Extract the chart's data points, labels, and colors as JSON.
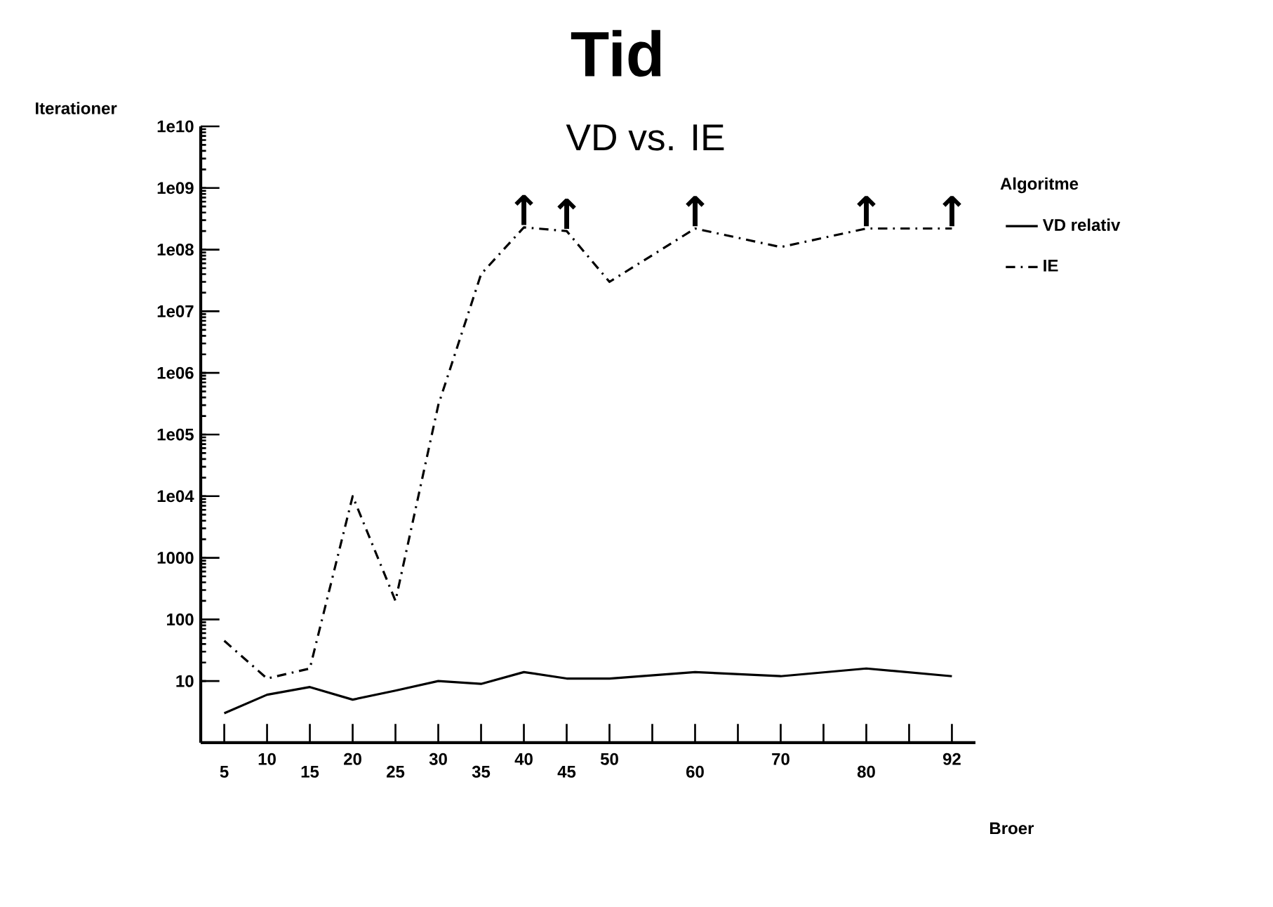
{
  "chart_data": {
    "type": "line",
    "title": "Tid",
    "subtitle": "VD vs. IE",
    "xlabel": "Broer",
    "ylabel": "Iterationer",
    "legend_title": "Algoritme",
    "categories": [
      "5",
      "10",
      "15",
      "20",
      "25",
      "30",
      "35",
      "40",
      "45",
      "50",
      null,
      "60",
      null,
      "70",
      null,
      "80",
      null,
      "92"
    ],
    "series": [
      {
        "name": "VD relativ",
        "color": "#000000",
        "line_style": "solid",
        "values": [
          3,
          6,
          8,
          5,
          7,
          10,
          9,
          14,
          11,
          11,
          null,
          14,
          null,
          12,
          null,
          16,
          null,
          12
        ]
      },
      {
        "name": "IE",
        "color": "#000000",
        "line_style": "dashdot",
        "values": [
          45,
          11,
          16,
          10000,
          200,
          300000,
          40000000,
          230000000,
          200000000,
          30000000,
          null,
          220000000,
          null,
          110000000,
          null,
          220000000,
          null,
          220000000
        ]
      }
    ],
    "log": "y",
    "ylim": [
      1,
      10000000000
    ],
    "yticks": [
      {
        "value": 10,
        "label": "10"
      },
      {
        "value": 100,
        "label": "100"
      },
      {
        "value": 1000,
        "label": "1000"
      },
      {
        "value": 10000,
        "label": "1e04"
      },
      {
        "value": 100000,
        "label": "1e05"
      },
      {
        "value": 1000000,
        "label": "1e06"
      },
      {
        "value": 10000000,
        "label": "1e07"
      },
      {
        "value": 100000000,
        "label": "1e08"
      },
      {
        "value": 1000000000,
        "label": "1e09"
      },
      {
        "value": 10000000000,
        "label": "1e10"
      }
    ],
    "annotations": [
      {
        "text": "↑",
        "x": "40",
        "y": 230000000
      },
      {
        "text": "↑",
        "x": "45",
        "y": 200000000
      },
      {
        "text": "↑",
        "x": "60",
        "y": 220000000
      },
      {
        "text": "↑",
        "x": "80",
        "y": 220000000
      },
      {
        "text": "↑",
        "x": "92",
        "y": 220000000
      }
    ],
    "legend": "right",
    "grid": false
  }
}
